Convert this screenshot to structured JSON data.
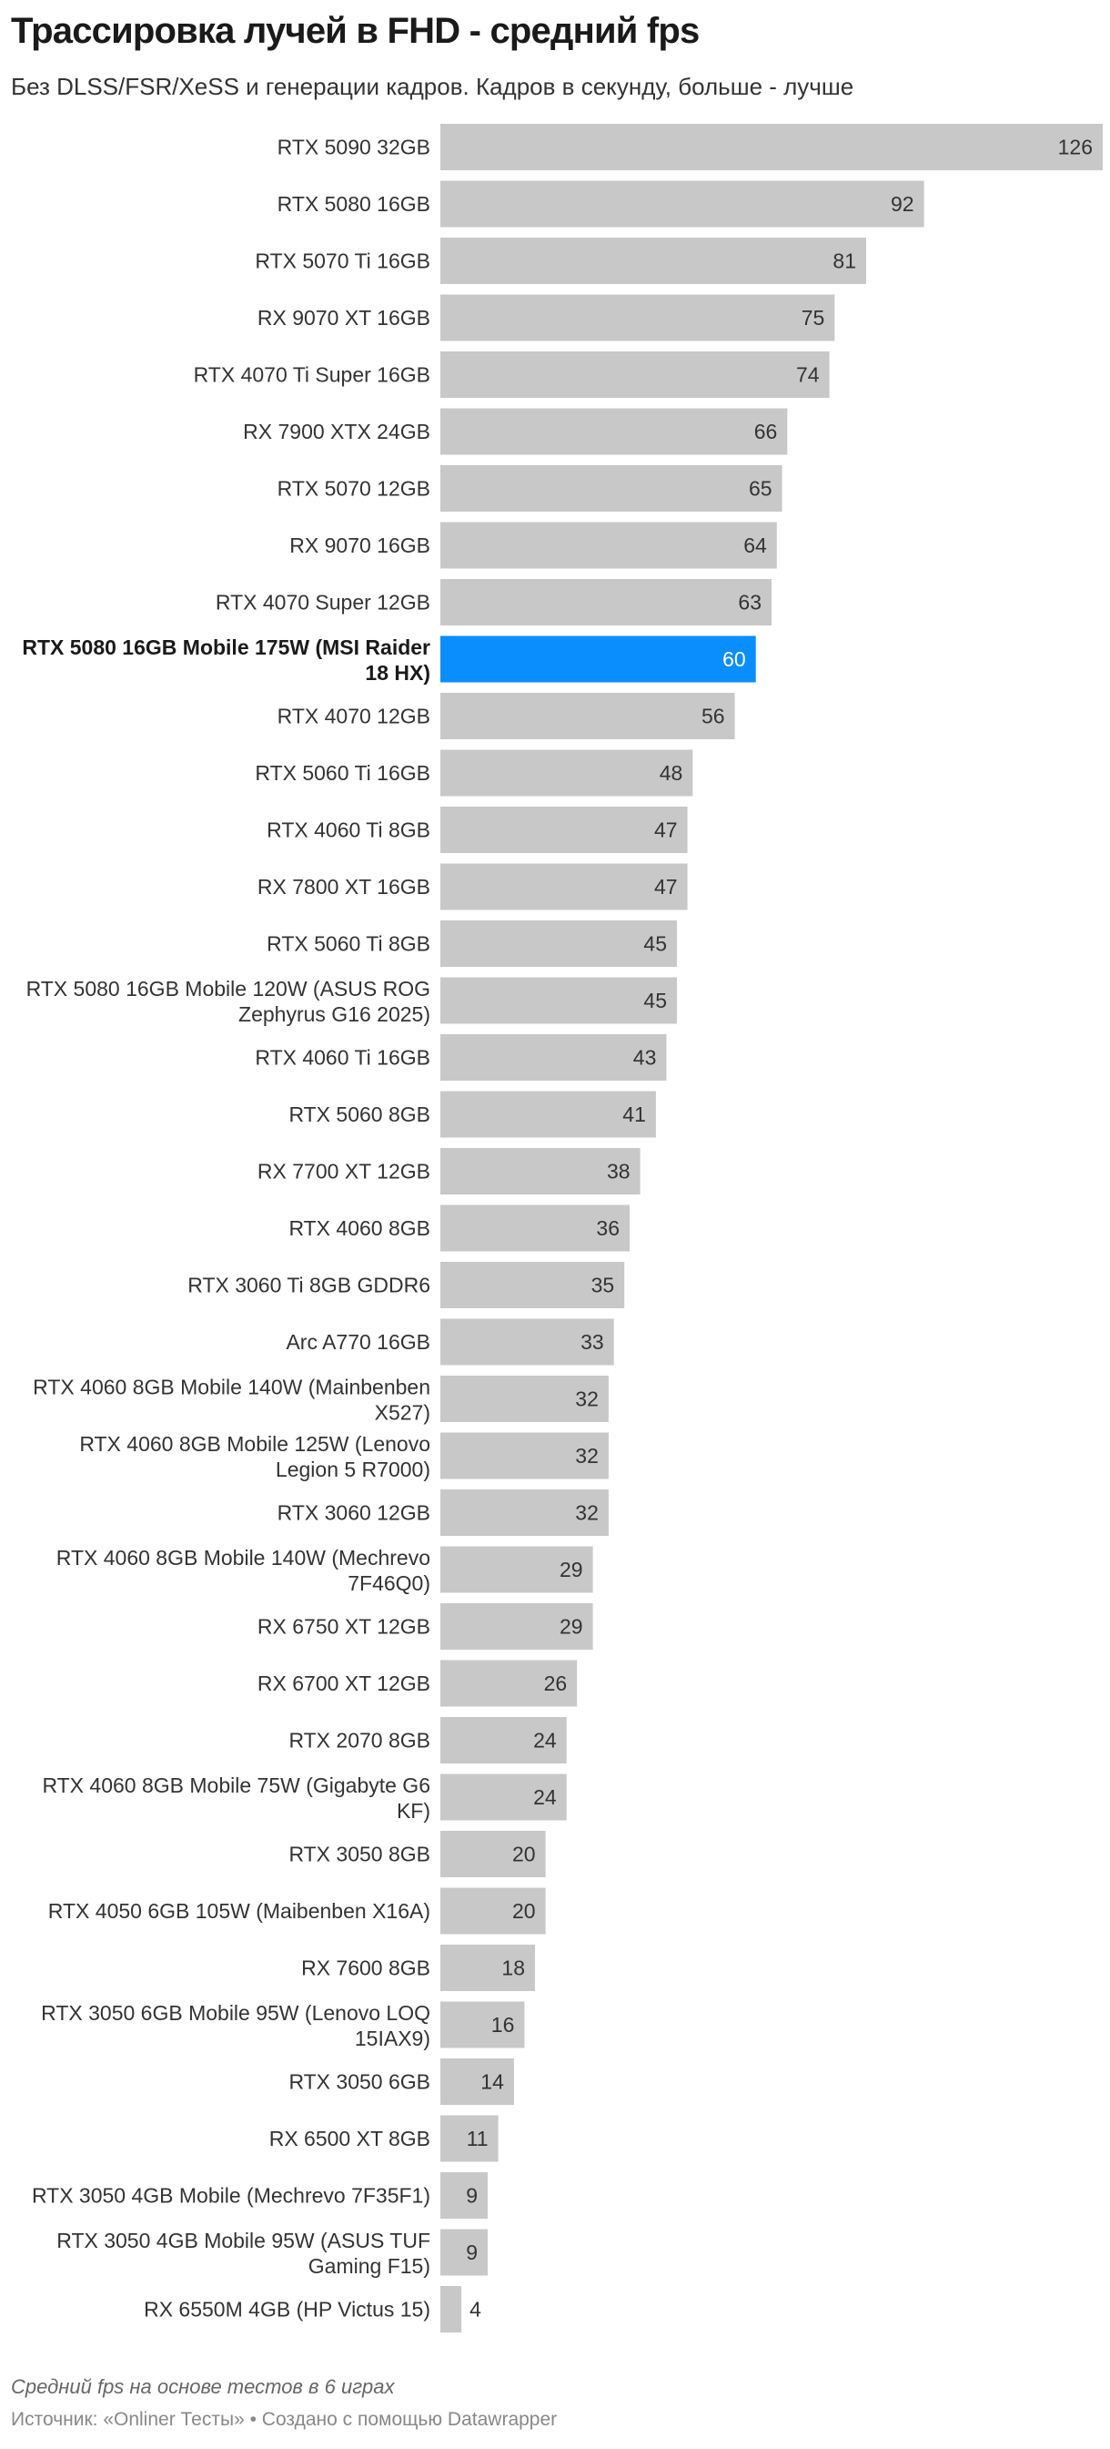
{
  "header": {
    "title": "Трассировка лучей в FHD - средний fps",
    "subtitle": "Без DLSS/FSR/XeSS и генерации кадров. Кадров в секунду, больше - лучше"
  },
  "footer": {
    "note": "Средний fps на основе тестов в 6 играх",
    "source_prefix": "Источник: ",
    "source_name": "«Onliner Тесты»",
    "separator": " • ",
    "credit": "Создано с помощью Datawrapper"
  },
  "colors": {
    "bar": "#c8c8c8",
    "highlight": "#0a8dfd"
  },
  "chart_data": {
    "type": "bar",
    "orientation": "horizontal",
    "title": "Трассировка лучей в FHD - средний fps",
    "subtitle": "Без DLSS/FSR/XeSS и генерации кадров. Кадров в секунду, больше - лучше",
    "xlim": [
      0,
      126
    ],
    "grid": false,
    "highlighted_category": "RTX 5080 16GB Mobile 175W (MSI Raider 18 HX)",
    "categories": [
      "RTX 5090 32GB",
      "RTX 5080 16GB",
      "RTX 5070 Ti 16GB",
      "RX 9070 XT 16GB",
      "RTX 4070 Ti Super 16GB",
      "RX 7900 XTX 24GB",
      "RTX 5070 12GB",
      "RX 9070 16GB",
      "RTX 4070 Super 12GB",
      "RTX 5080 16GB Mobile 175W (MSI Raider 18 HX)",
      "RTX 4070 12GB",
      "RTX 5060 Ti 16GB",
      "RTX 4060 Ti 8GB",
      "RX 7800 XT 16GB",
      "RTX 5060 Ti 8GB",
      "RTX 5080 16GB Mobile 120W (ASUS ROG Zephyrus G16 2025)",
      "RTX 4060 Ti 16GB",
      "RTX 5060 8GB",
      "RX 7700 XT 12GB",
      "RTX 4060 8GB",
      "RTX 3060 Ti 8GB GDDR6",
      "Arc A770 16GB",
      "RTX 4060 8GB Mobile 140W (Mainbenben X527)",
      "RTX 4060 8GB Mobile 125W (Lenovo Legion 5 R7000)",
      "RTX 3060 12GB",
      "RTX 4060 8GB Mobile 140W (Mechrevo 7F46Q0)",
      "RX 6750 XT 12GB",
      "RX 6700 XT 12GB",
      "RTX 2070 8GB",
      "RTX 4060 8GB Mobile 75W (Gigabyte G6 KF)",
      "RTX 3050 8GB",
      "RTX 4050 6GB 105W (Maibenben X16A)",
      "RX 7600 8GB",
      "RTX 3050 6GB Mobile 95W (Lenovo LOQ 15IAX9)",
      "RTX 3050 6GB",
      "RX 6500 XT 8GB",
      "RTX 3050 4GB Mobile (Mechrevo 7F35F1)",
      "RTX 3050 4GB Mobile 95W (ASUS TUF Gaming F15)",
      "RX 6550M 4GB (HP Victus 15)"
    ],
    "label_lines": [
      [
        "RTX 5090 32GB"
      ],
      [
        "RTX 5080 16GB"
      ],
      [
        "RTX 5070 Ti 16GB"
      ],
      [
        "RX 9070 XT 16GB"
      ],
      [
        "RTX 4070 Ti Super 16GB"
      ],
      [
        "RX 7900 XTX 24GB"
      ],
      [
        "RTX 5070 12GB"
      ],
      [
        "RX 9070 16GB"
      ],
      [
        "RTX 4070 Super 12GB"
      ],
      [
        "RTX 5080 16GB Mobile 175W (MSI Raider",
        "18 HX)"
      ],
      [
        "RTX 4070 12GB"
      ],
      [
        "RTX 5060 Ti 16GB"
      ],
      [
        "RTX 4060 Ti 8GB"
      ],
      [
        "RX 7800 XT 16GB"
      ],
      [
        "RTX 5060 Ti 8GB"
      ],
      [
        "RTX 5080 16GB Mobile 120W (ASUS ROG",
        "Zephyrus G16 2025)"
      ],
      [
        "RTX 4060 Ti 16GB"
      ],
      [
        "RTX 5060 8GB"
      ],
      [
        "RX 7700 XT 12GB"
      ],
      [
        "RTX 4060 8GB"
      ],
      [
        "RTX 3060 Ti 8GB GDDR6"
      ],
      [
        "Arc A770 16GB"
      ],
      [
        "RTX 4060 8GB Mobile 140W (Mainbenben",
        "X527)"
      ],
      [
        "RTX 4060 8GB Mobile 125W (Lenovo",
        "Legion 5 R7000)"
      ],
      [
        "RTX 3060 12GB"
      ],
      [
        "RTX 4060 8GB Mobile 140W (Mechrevo",
        "7F46Q0)"
      ],
      [
        "RX 6750 XT 12GB"
      ],
      [
        "RX 6700 XT 12GB"
      ],
      [
        "RTX 2070 8GB"
      ],
      [
        "RTX 4060 8GB Mobile 75W (Gigabyte G6",
        "KF)"
      ],
      [
        "RTX 3050 8GB"
      ],
      [
        "RTX 4050 6GB 105W (Maibenben X16A)"
      ],
      [
        "RX 7600 8GB"
      ],
      [
        "RTX 3050 6GB Mobile 95W (Lenovo LOQ",
        "15IAX9)"
      ],
      [
        "RTX 3050 6GB"
      ],
      [
        "RX 6500 XT 8GB"
      ],
      [
        "RTX 3050 4GB Mobile (Mechrevo 7F35F1)"
      ],
      [
        "RTX 3050 4GB Mobile 95W (ASUS TUF",
        "Gaming F15)"
      ],
      [
        "RX 6550M 4GB (HP Victus 15)"
      ]
    ],
    "values": [
      126,
      92,
      81,
      75,
      74,
      66,
      65,
      64,
      63,
      60,
      56,
      48,
      47,
      47,
      45,
      45,
      43,
      41,
      38,
      36,
      35,
      33,
      32,
      32,
      32,
      29,
      29,
      26,
      24,
      24,
      20,
      20,
      18,
      16,
      14,
      11,
      9,
      9,
      4
    ]
  }
}
